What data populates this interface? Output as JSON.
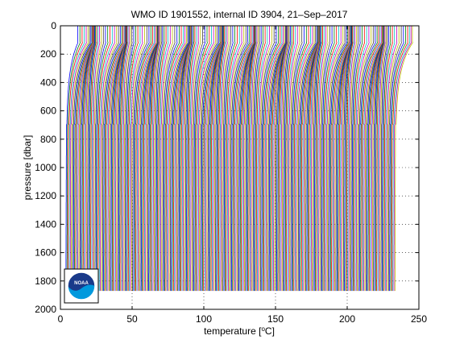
{
  "chart_data": {
    "type": "line",
    "title": "WMO ID 1901552, internal ID 3904, 21–Sep–2017",
    "xlabel_prefix": "temperature [",
    "xlabel_unit": "C",
    "xlabel_suffix": "]",
    "ylabel": "pressure [dbar]",
    "xlim": [
      0,
      250
    ],
    "ylim": [
      0,
      2000
    ],
    "y_reversed": true,
    "xticks": [
      "0",
      "50",
      "100",
      "150",
      "200",
      "250"
    ],
    "yticks": [
      "0",
      "200",
      "400",
      "600",
      "800",
      "1000",
      "1200",
      "1400",
      "1600",
      "1800",
      "2000"
    ],
    "grid": true,
    "profile_offset_step": 0.75,
    "profile_base_start": 2,
    "profile_base_end": 232,
    "profile_max_pressure": 1870,
    "series_colors": [
      "#0000ff",
      "#008000",
      "#ff0000",
      "#00bfbf",
      "#bf00bf",
      "#bfbf00",
      "#404040"
    ]
  },
  "logo": {
    "text": "NOAA",
    "colors": {
      "upper": "#1a3a8a",
      "lower": "#0099dd"
    }
  }
}
